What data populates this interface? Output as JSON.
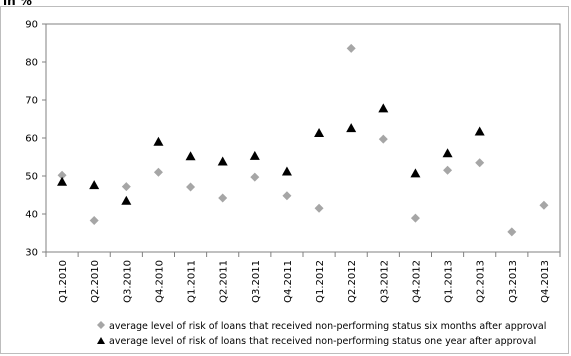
{
  "unit_label": "in %",
  "chart_data": {
    "type": "scatter",
    "categories": [
      "Q1.2010",
      "Q2.2010",
      "Q3.2010",
      "Q4.2010",
      "Q1.2011",
      "Q2.2011",
      "Q3.2011",
      "Q4.2011",
      "Q1.2012",
      "Q2.2012",
      "Q3.2012",
      "Q4.2012",
      "Q1.2013",
      "Q2.2013",
      "Q3.2013",
      "Q4.2013"
    ],
    "ylim": [
      30,
      90
    ],
    "yticks": [
      30,
      40,
      50,
      60,
      70,
      80,
      90
    ],
    "grid": false,
    "legend_position": "bottom",
    "series": [
      {
        "name": "average level of risk of loans that received non-performing status six months after approval",
        "marker": "diamond",
        "color": "#a6a6a6",
        "values": [
          50.2,
          38.3,
          47.2,
          51.0,
          47.1,
          44.2,
          49.7,
          44.8,
          41.5,
          83.6,
          59.7,
          38.9,
          51.5,
          53.5,
          35.3,
          42.3
        ]
      },
      {
        "name": "average level of risk of loans that received non-performing status one year after approval",
        "marker": "triangle",
        "color": "#000000",
        "values": [
          48.5,
          47.6,
          43.5,
          59.0,
          55.2,
          53.8,
          55.3,
          51.2,
          61.3,
          62.6,
          67.8,
          50.7,
          56.0,
          61.7,
          null,
          null
        ]
      }
    ]
  }
}
